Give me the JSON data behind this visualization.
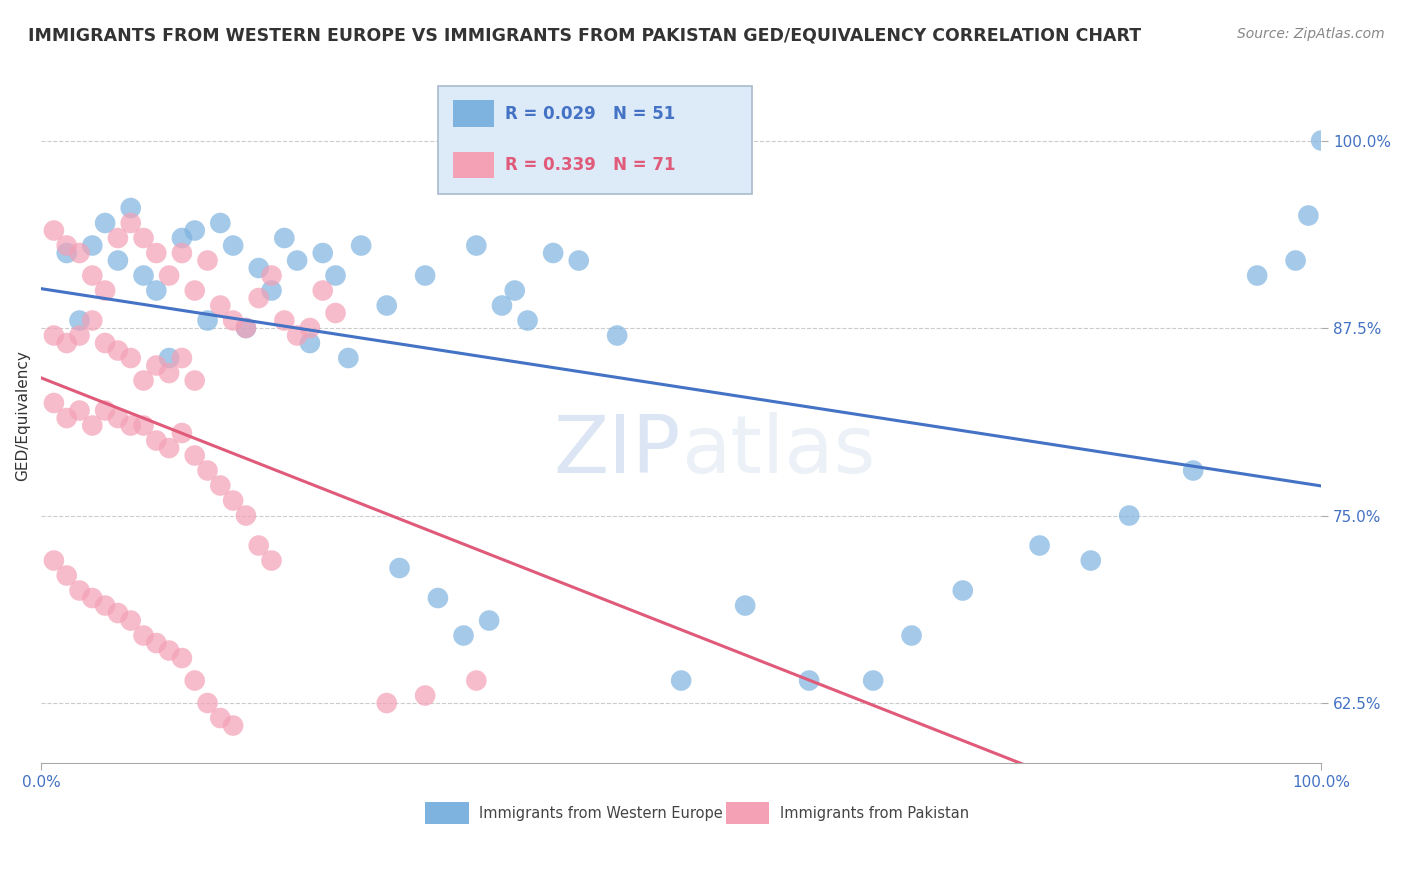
{
  "title": "IMMIGRANTS FROM WESTERN EUROPE VS IMMIGRANTS FROM PAKISTAN GED/EQUIVALENCY CORRELATION CHART",
  "source": "Source: ZipAtlas.com",
  "ylabel": "GED/Equivalency",
  "watermark_zip": "ZIP",
  "watermark_atlas": "atlas",
  "blue_r": 0.029,
  "blue_n": 51,
  "pink_r": 0.339,
  "pink_n": 71,
  "blue_color": "#7eb3e0",
  "pink_color": "#f4a0b5",
  "blue_line_color": "#4472c4",
  "pink_line_color": "#e05a7a",
  "legend_bg_color": "#ddeaf8",
  "legend_edge_color": "#aabbcc",
  "blue_scatter_x": [
    0.02,
    0.04,
    0.06,
    0.08,
    0.09,
    0.11,
    0.12,
    0.14,
    0.15,
    0.17,
    0.18,
    0.19,
    0.2,
    0.22,
    0.23,
    0.25,
    0.27,
    0.3,
    0.34,
    0.36,
    0.38,
    0.4,
    0.13,
    0.07,
    0.05,
    0.03,
    0.1,
    0.16,
    0.21,
    0.24,
    0.28,
    0.31,
    0.33,
    0.35,
    0.37,
    0.42,
    0.45,
    0.5,
    0.55,
    0.6,
    0.65,
    0.68,
    0.72,
    0.78,
    0.82,
    0.85,
    0.9,
    0.95,
    0.98,
    0.99,
    1.0
  ],
  "blue_scatter_y": [
    0.925,
    0.93,
    0.92,
    0.91,
    0.9,
    0.935,
    0.94,
    0.945,
    0.93,
    0.915,
    0.9,
    0.935,
    0.92,
    0.925,
    0.91,
    0.93,
    0.89,
    0.91,
    0.93,
    0.89,
    0.88,
    0.925,
    0.88,
    0.955,
    0.945,
    0.88,
    0.855,
    0.875,
    0.865,
    0.855,
    0.715,
    0.695,
    0.67,
    0.68,
    0.9,
    0.92,
    0.87,
    0.64,
    0.69,
    0.64,
    0.64,
    0.67,
    0.7,
    0.73,
    0.72,
    0.75,
    0.78,
    0.91,
    0.92,
    0.95,
    1.0
  ],
  "pink_scatter_x": [
    0.01,
    0.02,
    0.03,
    0.04,
    0.05,
    0.06,
    0.07,
    0.08,
    0.09,
    0.1,
    0.11,
    0.12,
    0.13,
    0.14,
    0.15,
    0.16,
    0.17,
    0.18,
    0.19,
    0.2,
    0.21,
    0.22,
    0.23,
    0.01,
    0.02,
    0.03,
    0.04,
    0.05,
    0.06,
    0.07,
    0.08,
    0.09,
    0.1,
    0.11,
    0.12,
    0.01,
    0.02,
    0.03,
    0.04,
    0.05,
    0.06,
    0.07,
    0.08,
    0.09,
    0.1,
    0.11,
    0.12,
    0.13,
    0.14,
    0.15,
    0.16,
    0.17,
    0.18,
    0.01,
    0.02,
    0.03,
    0.04,
    0.05,
    0.06,
    0.07,
    0.08,
    0.09,
    0.1,
    0.11,
    0.12,
    0.13,
    0.14,
    0.15,
    0.27,
    0.3,
    0.34
  ],
  "pink_scatter_y": [
    0.94,
    0.93,
    0.925,
    0.91,
    0.9,
    0.935,
    0.945,
    0.935,
    0.925,
    0.91,
    0.925,
    0.9,
    0.92,
    0.89,
    0.88,
    0.875,
    0.895,
    0.91,
    0.88,
    0.87,
    0.875,
    0.9,
    0.885,
    0.87,
    0.865,
    0.87,
    0.88,
    0.865,
    0.86,
    0.855,
    0.84,
    0.85,
    0.845,
    0.855,
    0.84,
    0.825,
    0.815,
    0.82,
    0.81,
    0.82,
    0.815,
    0.81,
    0.81,
    0.8,
    0.795,
    0.805,
    0.79,
    0.78,
    0.77,
    0.76,
    0.75,
    0.73,
    0.72,
    0.72,
    0.71,
    0.7,
    0.695,
    0.69,
    0.685,
    0.68,
    0.67,
    0.665,
    0.66,
    0.655,
    0.64,
    0.625,
    0.615,
    0.61,
    0.625,
    0.63,
    0.64
  ]
}
